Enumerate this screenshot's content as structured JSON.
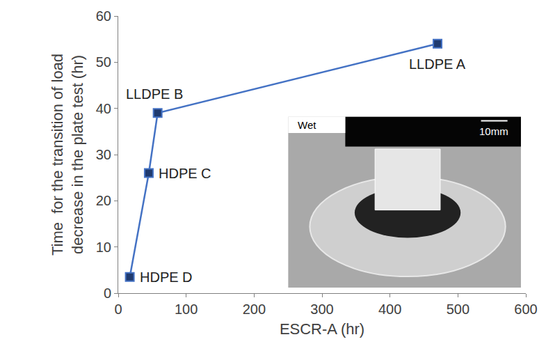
{
  "chart_data": {
    "type": "line",
    "x": [
      17,
      45,
      58,
      470
    ],
    "values": [
      3.5,
      26,
      39,
      54
    ],
    "labels": [
      "HDPE D",
      "HDPE C",
      "LLDPE B",
      "LLDPE A"
    ],
    "color": "#4472c4",
    "marker": "square",
    "xlabel": "ESCR-A (hr)",
    "ylabel": "Time  for the transition of load decrease in the plate test (hr)",
    "xlim": [
      0,
      600
    ],
    "xticks": [
      0,
      100,
      200,
      300,
      400,
      500,
      600
    ],
    "ylim": [
      0,
      60
    ],
    "yticks": [
      0,
      10,
      20,
      30,
      40,
      50,
      60
    ],
    "grid": false,
    "annotations": [
      "Wet",
      "10mm"
    ]
  }
}
